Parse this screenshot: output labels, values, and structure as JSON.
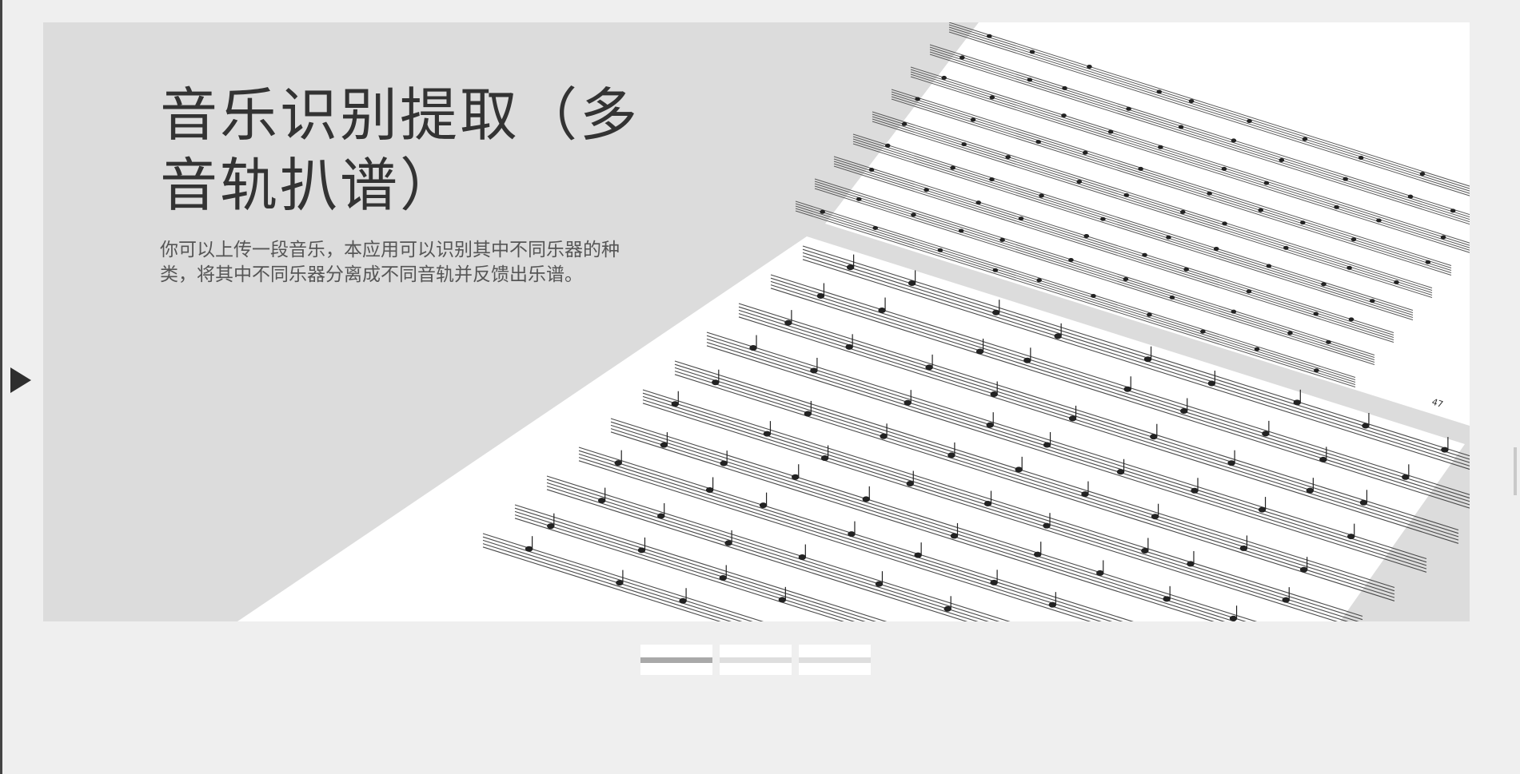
{
  "slide": {
    "title_line1": "音乐识别提取（多",
    "title_line2": "音轨扒谱）",
    "description_line1": "你可以上传一段音乐，本应用可以识别其中不同乐器的种",
    "description_line2": "类，将其中不同乐器分离成不同音轨并反馈出乐谱。",
    "page_number": "47"
  },
  "carousel": {
    "active_index": 0,
    "indicator_count": 3,
    "prev_icon": "play-triangle-icon"
  },
  "colors": {
    "background": "#efefef",
    "slide_background": "#dcdcdc",
    "title": "#333333",
    "indicator_active": "#a9a9a9",
    "indicator_inactive": "#dedede"
  }
}
